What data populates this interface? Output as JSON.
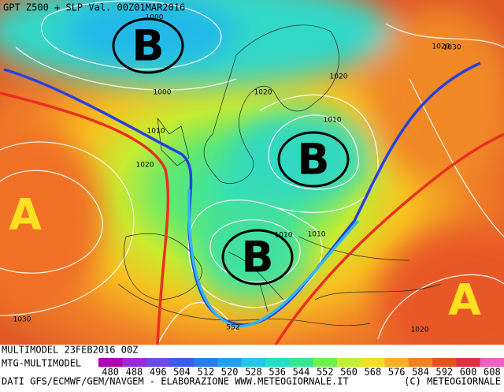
{
  "header": {
    "title": "GPT Z500 + SLP Val. 00Z01MAR2016"
  },
  "map": {
    "lows": [
      "B",
      "B",
      "B"
    ],
    "highs": [
      "A",
      "A"
    ],
    "isobar_labels": [
      "1000",
      "1000",
      "1010",
      "1020",
      "1020",
      "1020",
      "1010",
      "1010",
      "1010",
      "1030",
      "1030",
      "1020",
      "1020",
      "552"
    ]
  },
  "footer": {
    "run": "MULTIMODEL 23FEB2016 00Z",
    "model": "MTG-MULTIMODEL",
    "credits": "DATI GFS/ECMWF/GEM/NAVGEM - ELABORAZIONE WWW.METEOGIORNALE.IT",
    "copyright": "(C) METEOGIORNALE"
  },
  "legend": {
    "ticks": [
      480,
      488,
      496,
      504,
      512,
      520,
      528,
      536,
      544,
      552,
      560,
      568,
      576,
      584,
      592,
      600,
      608
    ],
    "colors": [
      "#b000b0",
      "#9a2ad8",
      "#6a4ae8",
      "#3a5af0",
      "#2a7af0",
      "#20a0f0",
      "#20c8e8",
      "#20e0c8",
      "#30e890",
      "#70f050",
      "#c0f030",
      "#f0e020",
      "#f8b020",
      "#f08020",
      "#e85020",
      "#e03040",
      "#f060c0"
    ]
  }
}
